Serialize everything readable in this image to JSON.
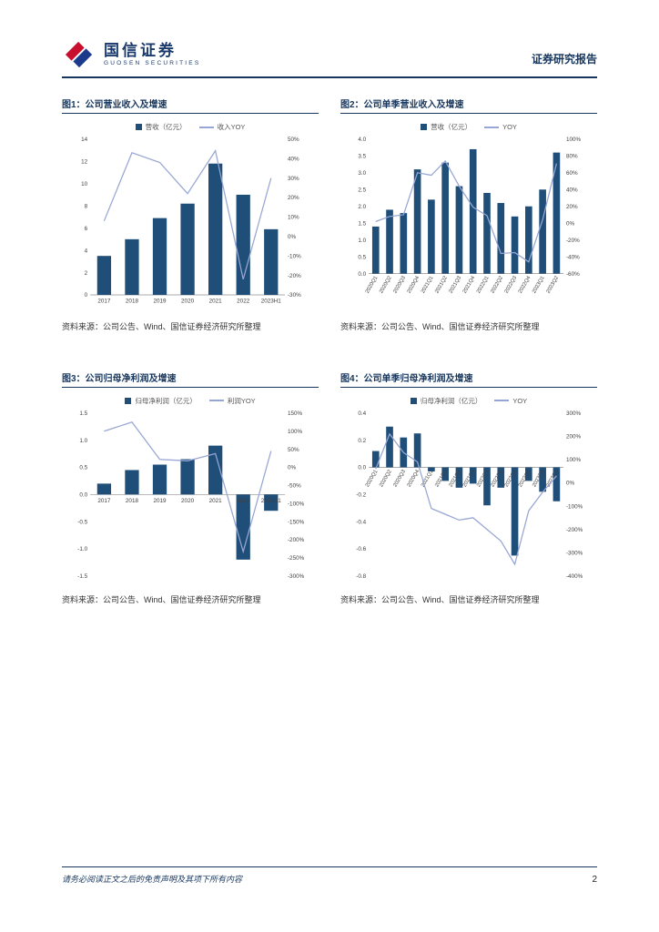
{
  "header": {
    "brand_cn": "国信证券",
    "brand_en": "GUOSEN SECURITIES",
    "report_label": "证券研究报告"
  },
  "colors": {
    "navy": "#17365D",
    "bar": "#1F4E79",
    "line": "#98A6D4",
    "logo_red": "#C8102E",
    "logo_blue": "#1B3A8C",
    "tick_text": "#404040",
    "axis_line": "#8F8F8F"
  },
  "footer": {
    "disclaimer": "请务必阅读正文之后的免责声明及其项下所有内容",
    "page_number": "2"
  },
  "chart_data": [
    {
      "figure_label": "图1：公司营业收入及增速",
      "type": "bar+line",
      "categories": [
        "2017",
        "2018",
        "2019",
        "2020",
        "2021",
        "2022",
        "2023H1"
      ],
      "series": [
        {
          "name": "营收（亿元）",
          "type": "bar",
          "axis": "left",
          "values": [
            3.5,
            5.0,
            6.9,
            8.2,
            11.8,
            9.0,
            5.9
          ]
        },
        {
          "name": "收入YOY",
          "type": "line",
          "axis": "right",
          "values": [
            8,
            43,
            38,
            22,
            44,
            -22,
            30
          ]
        }
      ],
      "left_axis": {
        "min": 0,
        "max": 14,
        "step": 2,
        "decimals": 0
      },
      "right_axis": {
        "min": -30,
        "max": 50,
        "step": 10,
        "format": "percent"
      },
      "x_label_rotate": 0,
      "grid": false,
      "legend_position": "top",
      "source": "资料来源：公司公告、Wind、国信证券经济研究所整理"
    },
    {
      "figure_label": "图2：公司单季营业收入及增速",
      "type": "bar+line",
      "categories": [
        "2020Q1",
        "2020Q2",
        "2020Q3",
        "2020Q4",
        "2021Q1",
        "2021Q2",
        "2021Q3",
        "2021Q4",
        "2022Q1",
        "2022Q2",
        "2022Q3",
        "2022Q4",
        "2023Q1",
        "2023Q2"
      ],
      "series": [
        {
          "name": "营收（亿元）",
          "type": "bar",
          "axis": "left",
          "values": [
            1.4,
            1.9,
            1.8,
            3.1,
            2.2,
            3.3,
            2.6,
            3.7,
            2.4,
            2.1,
            1.7,
            2.0,
            2.5,
            3.6
          ]
        },
        {
          "name": "YOY",
          "type": "line",
          "axis": "right",
          "values": [
            2,
            8,
            10,
            60,
            57,
            74,
            44,
            19,
            9,
            -36,
            -35,
            -46,
            4,
            71
          ]
        }
      ],
      "left_axis": {
        "min": 0,
        "max": 4,
        "step": 0.5,
        "decimals": 1
      },
      "right_axis": {
        "min": -60,
        "max": 100,
        "step": 20,
        "format": "percent"
      },
      "x_label_rotate": -60,
      "grid": false,
      "legend_position": "top",
      "source": "资料来源：公司公告、Wind、国信证券经济研究所整理"
    },
    {
      "figure_label": "图3：公司归母净利润及增速",
      "type": "bar+line",
      "categories": [
        "2017",
        "2018",
        "2019",
        "2020",
        "2021",
        "2022",
        "2023H1"
      ],
      "series": [
        {
          "name": "归母净利润（亿元）",
          "type": "bar",
          "axis": "left",
          "values": [
            0.2,
            0.45,
            0.55,
            0.65,
            0.9,
            -1.2,
            -0.3
          ]
        },
        {
          "name": "利润YOY",
          "type": "line",
          "axis": "right",
          "values": [
            100,
            125,
            22,
            18,
            38,
            -233,
            45
          ]
        }
      ],
      "left_axis": {
        "min": -1.5,
        "max": 1.5,
        "step": 0.5,
        "decimals": 1
      },
      "right_axis": {
        "min": -300,
        "max": 150,
        "step": 50,
        "format": "percent"
      },
      "x_label_rotate": 0,
      "grid": false,
      "legend_position": "top",
      "source": "资料来源：公司公告、Wind、国信证券经济研究所整理"
    },
    {
      "figure_label": "图4：公司单季归母净利润及增速",
      "type": "bar+line",
      "categories": [
        "2020Q1",
        "2020Q2",
        "2020Q3",
        "2020Q4",
        "2021Q1",
        "2021Q2",
        "2021Q3",
        "2021Q4",
        "2022Q1",
        "2022Q2",
        "2022Q3",
        "2022Q4",
        "2023Q1",
        "2023Q2"
      ],
      "series": [
        {
          "name": "归母净利润（亿元）",
          "type": "bar",
          "axis": "left",
          "values": [
            0.12,
            0.3,
            0.22,
            0.25,
            -0.03,
            -0.1,
            -0.15,
            -0.12,
            -0.28,
            -0.15,
            -0.65,
            -0.1,
            -0.18,
            -0.25
          ]
        },
        {
          "name": "YOY",
          "type": "line",
          "axis": "right",
          "values": [
            60,
            210,
            130,
            90,
            -110,
            -135,
            -160,
            -150,
            -200,
            -250,
            -350,
            -120,
            -40,
            30
          ]
        }
      ],
      "left_axis": {
        "min": -0.8,
        "max": 0.4,
        "step": 0.2,
        "decimals": 1
      },
      "right_axis": {
        "min": -400,
        "max": 300,
        "step": 100,
        "format": "percent"
      },
      "x_label_rotate": -60,
      "grid": false,
      "legend_position": "top",
      "source": "资料来源：公司公告、Wind、国信证券经济研究所整理"
    }
  ]
}
